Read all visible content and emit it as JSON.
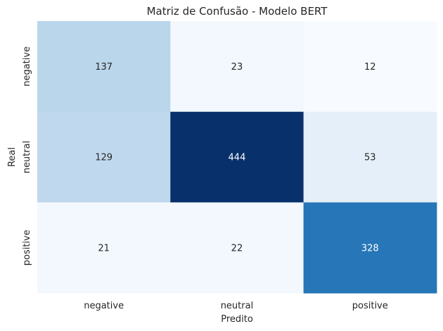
{
  "chart_data": {
    "type": "heatmap",
    "title": "Matriz de Confusão - Modelo BERT",
    "xlabel": "Predito",
    "ylabel": "Real",
    "x_categories": [
      "negative",
      "neutral",
      "positive"
    ],
    "y_categories": [
      "negative",
      "neutral",
      "positive"
    ],
    "values": [
      [
        137,
        23,
        12
      ],
      [
        129,
        444,
        53
      ],
      [
        21,
        22,
        328
      ]
    ],
    "colormap": "Blues",
    "colorbar": false,
    "annotations": true,
    "grid": false
  }
}
